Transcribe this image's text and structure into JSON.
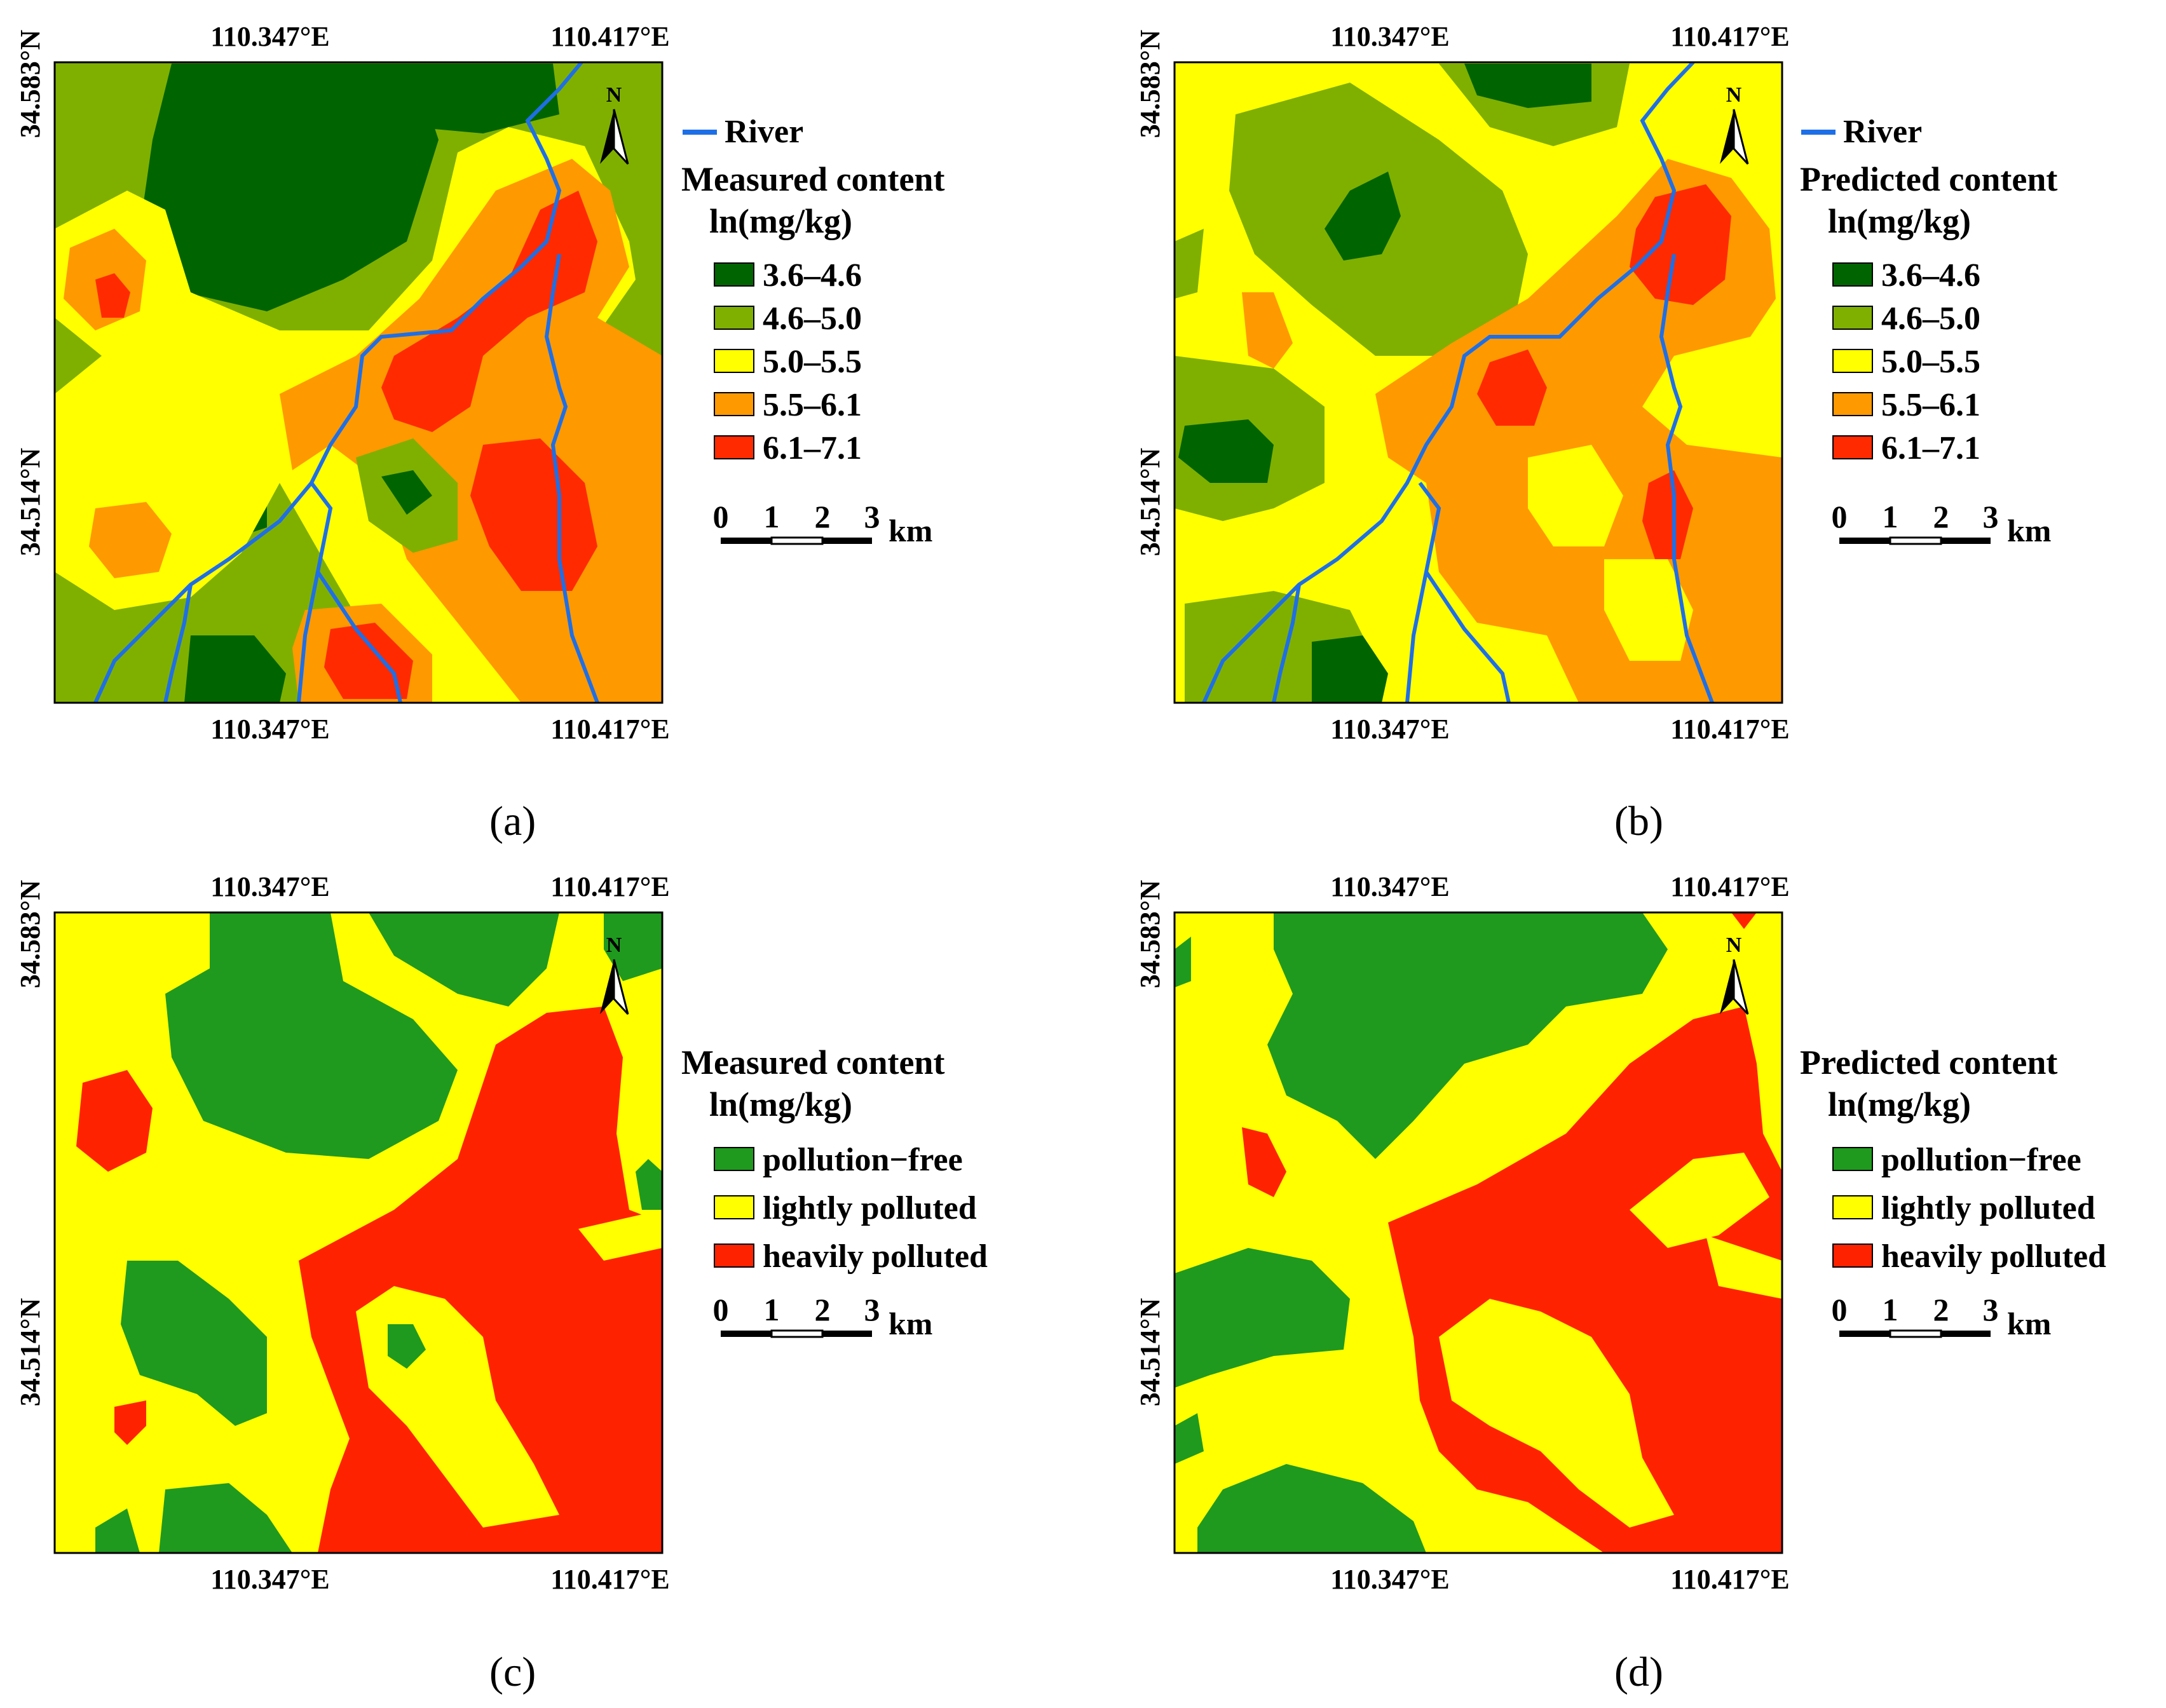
{
  "figure": {
    "coords": {
      "lon_left": "110.347°E",
      "lon_right": "110.417°E",
      "lat_top": "34.583°N",
      "lat_bottom": "34.514°N"
    },
    "north_label": "N",
    "scale_bar": {
      "ticks": [
        "0",
        "1",
        "2",
        "3"
      ],
      "unit": "km"
    },
    "river_label": "River",
    "units": "ln(mg/kg)",
    "colors": {
      "c1": "#006400",
      "c2": "#7fb000",
      "c3": "#ffff00",
      "c4": "#ff9900",
      "c5": "#ff2a00",
      "clean": "#1f9a1f",
      "light": "#ffff00",
      "heavy": "#ff2200",
      "river": "#1e6fe6"
    },
    "panels": [
      {
        "caption": "(a)",
        "legend_title": "Measured content",
        "legend_items": [
          "3.6–4.6",
          "4.6–5.0",
          "5.0–5.5",
          "5.5–6.1",
          "6.1–7.1"
        ]
      },
      {
        "caption": "(b)",
        "legend_title": "Predicted content",
        "legend_items": [
          "3.6–4.6",
          "4.6–5.0",
          "5.0–5.5",
          "5.5–6.1",
          "6.1–7.1"
        ]
      },
      {
        "caption": "(c)",
        "legend_title": "Measured content",
        "legend_items": [
          "pollution−free",
          "lightly polluted",
          "heavily polluted"
        ]
      },
      {
        "caption": "(d)",
        "legend_title": "Predicted content",
        "legend_items": [
          "pollution−free",
          "lightly polluted",
          "heavily polluted"
        ]
      }
    ]
  }
}
